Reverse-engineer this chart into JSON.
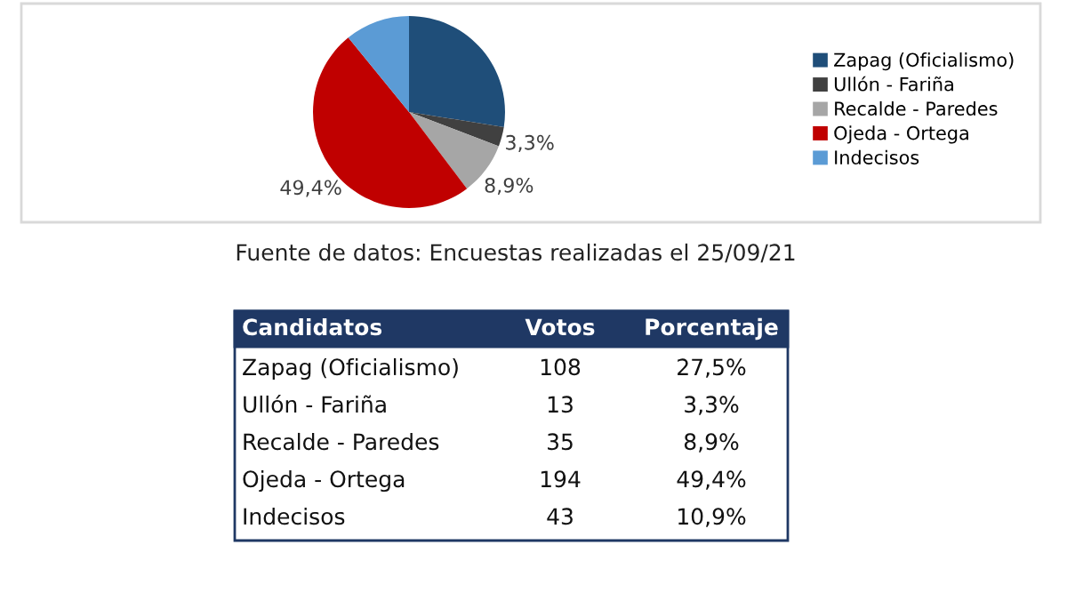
{
  "chart_data": [
    {
      "type": "pie",
      "categories": [
        "Zapag (Oficialismo)",
        "Ullón - Fariña",
        "Recalde - Paredes",
        "Ojeda - Ortega",
        "Indecisos"
      ],
      "values": [
        27.5,
        3.3,
        8.9,
        49.4,
        10.9
      ],
      "colors": [
        "#1f4e79",
        "#404040",
        "#a6a6a6",
        "#c00000",
        "#5b9bd5"
      ],
      "value_labels": [
        null,
        "3,3%",
        "8,9%",
        "49,4%",
        null
      ],
      "legend": "right",
      "annotations": [
        "Fuente de datos: Encuestas realizadas el 25/09/21"
      ]
    },
    {
      "type": "other",
      "xlabel": "Candidatos",
      "categories": [
        "Zapag (Oficialismo)",
        "Ullón - Fariña",
        "Recalde - Paredes",
        "Ojeda - Ortega",
        "Indecisos"
      ],
      "series": [
        {
          "name": "Votos",
          "values": [
            108,
            13,
            35,
            194,
            43
          ]
        },
        {
          "name": "Porcentaje",
          "values": [
            27.5,
            3.3,
            8.9,
            49.4,
            10.9
          ],
          "value_labels": [
            "27,5%",
            "3,3%",
            "8,9%",
            "49,4%",
            "10,9%"
          ]
        }
      ],
      "data_labels": true
    }
  ]
}
